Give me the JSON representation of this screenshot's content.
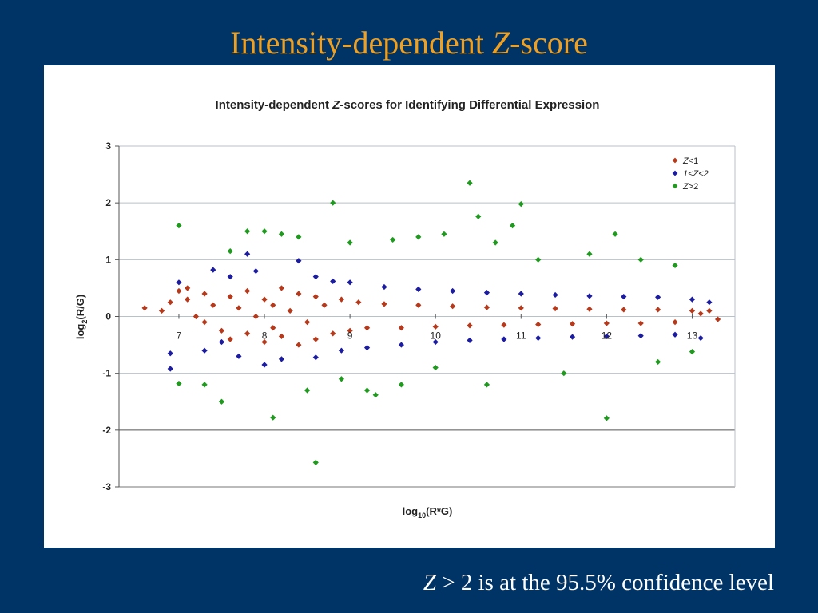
{
  "slide": {
    "title_plain": "Intensity-dependent ",
    "title_italic": "Z",
    "title_suffix": "-score",
    "footnote_italic": "Z",
    "footnote_math": " > 2  ",
    "footnote_text": "is at the 95.5% confidence level"
  },
  "colors": {
    "background": "#003366",
    "title": "#f0a020",
    "z_lt_1": "#b5391a",
    "z_1_2": "#1c1ca0",
    "z_gt_2": "#1f9a1f",
    "grid": "#b8c0c8"
  },
  "chart_data": {
    "type": "scatter",
    "title_prefix": "Intensity-dependent ",
    "title_italic": "Z",
    "title_suffix": "-scores for Identifying Differential Expression",
    "xlabel": "log10(R*G)",
    "ylabel": "log2(R/G)",
    "xlim": [
      6.3,
      13.5
    ],
    "ylim": [
      -3,
      3
    ],
    "yticks": [
      3,
      2,
      1,
      0,
      -1,
      -2,
      -3
    ],
    "xticks": [
      7,
      8,
      9,
      10,
      11,
      12,
      13
    ],
    "grid": true,
    "legend_position": "top-right",
    "series": [
      {
        "name": "Z<1",
        "name_italic": "Z",
        "name_suffix": "<1",
        "color": "#b5391a",
        "points": [
          [
            6.6,
            0.15
          ],
          [
            6.8,
            0.1
          ],
          [
            6.9,
            0.25
          ],
          [
            7.0,
            0.45
          ],
          [
            7.1,
            0.5
          ],
          [
            7.1,
            0.3
          ],
          [
            7.2,
            0.0
          ],
          [
            7.3,
            -0.1
          ],
          [
            7.3,
            0.4
          ],
          [
            7.4,
            0.2
          ],
          [
            7.5,
            -0.25
          ],
          [
            7.6,
            0.35
          ],
          [
            7.6,
            -0.4
          ],
          [
            7.7,
            0.15
          ],
          [
            7.8,
            -0.3
          ],
          [
            7.8,
            0.45
          ],
          [
            7.9,
            0.0
          ],
          [
            8.0,
            0.3
          ],
          [
            8.0,
            -0.45
          ],
          [
            8.1,
            0.2
          ],
          [
            8.1,
            -0.2
          ],
          [
            8.2,
            0.5
          ],
          [
            8.2,
            -0.35
          ],
          [
            8.3,
            0.1
          ],
          [
            8.4,
            -0.5
          ],
          [
            8.4,
            0.4
          ],
          [
            8.5,
            -0.1
          ],
          [
            8.6,
            0.35
          ],
          [
            8.6,
            -0.4
          ],
          [
            8.7,
            0.2
          ],
          [
            8.8,
            -0.3
          ],
          [
            8.9,
            0.3
          ],
          [
            9.0,
            -0.25
          ],
          [
            9.1,
            0.25
          ],
          [
            9.2,
            -0.2
          ],
          [
            9.4,
            0.22
          ],
          [
            9.6,
            -0.2
          ],
          [
            9.8,
            0.2
          ],
          [
            10.0,
            -0.18
          ],
          [
            10.2,
            0.18
          ],
          [
            10.4,
            -0.16
          ],
          [
            10.6,
            0.16
          ],
          [
            10.8,
            -0.15
          ],
          [
            11.0,
            0.15
          ],
          [
            11.2,
            -0.14
          ],
          [
            11.4,
            0.14
          ],
          [
            11.6,
            -0.13
          ],
          [
            11.8,
            0.13
          ],
          [
            12.0,
            -0.12
          ],
          [
            12.2,
            0.12
          ],
          [
            12.4,
            -0.12
          ],
          [
            12.6,
            0.12
          ],
          [
            12.8,
            -0.1
          ],
          [
            13.0,
            0.1
          ],
          [
            13.1,
            0.05
          ],
          [
            13.2,
            0.1
          ],
          [
            13.3,
            -0.05
          ]
        ]
      },
      {
        "name": "1<Z<2",
        "name_italic": "1<Z<2",
        "name_suffix": "",
        "color": "#1c1ca0",
        "points": [
          [
            6.9,
            -0.65
          ],
          [
            6.9,
            -0.92
          ],
          [
            7.0,
            0.6
          ],
          [
            7.3,
            -0.6
          ],
          [
            7.4,
            0.82
          ],
          [
            7.5,
            -0.45
          ],
          [
            7.6,
            0.7
          ],
          [
            7.7,
            -0.7
          ],
          [
            7.8,
            1.1
          ],
          [
            7.9,
            0.8
          ],
          [
            8.0,
            -0.85
          ],
          [
            8.2,
            -0.75
          ],
          [
            8.4,
            0.98
          ],
          [
            8.6,
            0.7
          ],
          [
            8.6,
            -0.72
          ],
          [
            8.8,
            0.62
          ],
          [
            8.9,
            -0.6
          ],
          [
            9.0,
            0.6
          ],
          [
            9.2,
            -0.55
          ],
          [
            9.4,
            0.52
          ],
          [
            9.6,
            -0.5
          ],
          [
            9.8,
            0.48
          ],
          [
            10.0,
            -0.45
          ],
          [
            10.2,
            0.45
          ],
          [
            10.4,
            -0.42
          ],
          [
            10.6,
            0.42
          ],
          [
            10.8,
            -0.4
          ],
          [
            11.0,
            0.4
          ],
          [
            11.2,
            -0.38
          ],
          [
            11.4,
            0.38
          ],
          [
            11.6,
            -0.36
          ],
          [
            11.8,
            0.36
          ],
          [
            12.0,
            -0.35
          ],
          [
            12.2,
            0.35
          ],
          [
            12.4,
            -0.34
          ],
          [
            12.6,
            0.34
          ],
          [
            12.8,
            -0.32
          ],
          [
            13.0,
            0.3
          ],
          [
            13.1,
            -0.38
          ],
          [
            13.2,
            0.25
          ]
        ]
      },
      {
        "name": "Z>2",
        "name_italic": "Z",
        "name_suffix": ">2",
        "color": "#1f9a1f",
        "points": [
          [
            7.0,
            1.6
          ],
          [
            7.0,
            -1.18
          ],
          [
            7.3,
            -1.2
          ],
          [
            7.5,
            -1.5
          ],
          [
            7.6,
            1.15
          ],
          [
            7.8,
            1.5
          ],
          [
            8.0,
            1.5
          ],
          [
            8.1,
            -1.78
          ],
          [
            8.2,
            1.45
          ],
          [
            8.4,
            1.4
          ],
          [
            8.5,
            -1.3
          ],
          [
            8.6,
            -2.57
          ],
          [
            8.8,
            2.0
          ],
          [
            8.9,
            -1.1
          ],
          [
            9.0,
            1.3
          ],
          [
            9.2,
            -1.3
          ],
          [
            9.3,
            -1.38
          ],
          [
            9.5,
            1.35
          ],
          [
            9.6,
            -1.2
          ],
          [
            9.8,
            1.4
          ],
          [
            10.0,
            -0.9
          ],
          [
            10.1,
            1.45
          ],
          [
            10.4,
            2.35
          ],
          [
            10.5,
            1.76
          ],
          [
            10.6,
            -1.2
          ],
          [
            10.7,
            1.3
          ],
          [
            10.9,
            1.6
          ],
          [
            11.0,
            1.98
          ],
          [
            11.2,
            1.0
          ],
          [
            11.5,
            -1.0
          ],
          [
            11.8,
            1.1
          ],
          [
            12.0,
            -1.79
          ],
          [
            12.1,
            1.45
          ],
          [
            12.4,
            1.0
          ],
          [
            12.6,
            -0.8
          ],
          [
            12.8,
            0.9
          ],
          [
            13.0,
            -0.62
          ]
        ]
      }
    ]
  }
}
